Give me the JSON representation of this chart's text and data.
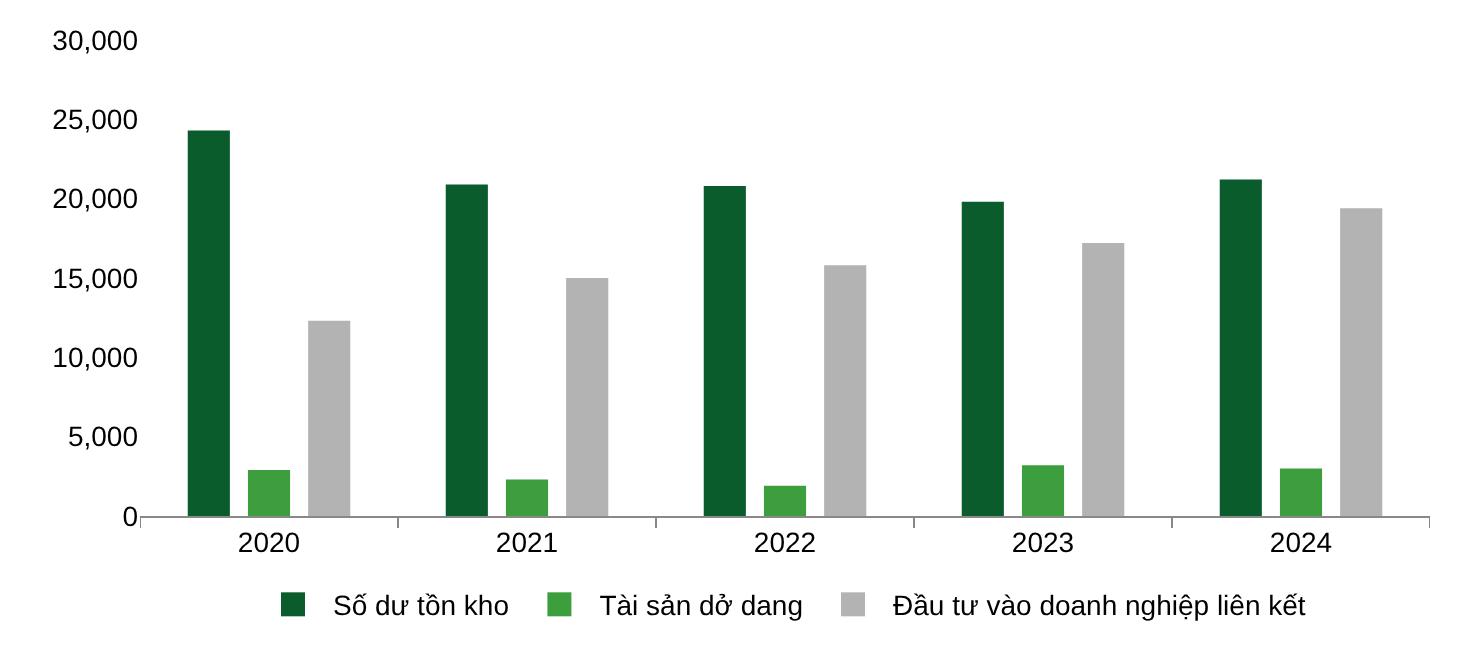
{
  "chart_data": {
    "type": "bar",
    "categories": [
      "2020",
      "2021",
      "2022",
      "2023",
      "2024"
    ],
    "series": [
      {
        "name": "Số dư tồn kho",
        "color": "#0a5c2c",
        "values": [
          24300,
          20900,
          20800,
          19800,
          21200
        ]
      },
      {
        "name": "Tài sản dở dang",
        "color": "#3c9e3c",
        "values": [
          2900,
          2300,
          1900,
          3200,
          3000
        ]
      },
      {
        "name": "Đầu tư vào doanh nghiệp liên kết",
        "color": "#b3b3b3",
        "values": [
          12300,
          15000,
          15800,
          17200,
          19400
        ]
      }
    ],
    "ylim": [
      0,
      30000
    ],
    "yticks": [
      {
        "value": 0,
        "label": "0"
      },
      {
        "value": 5000,
        "label": "5,000"
      },
      {
        "value": 10000,
        "label": "10,000"
      },
      {
        "value": 15000,
        "label": "15,000"
      },
      {
        "value": 20000,
        "label": "20,000"
      },
      {
        "value": 25000,
        "label": "25,000"
      },
      {
        "value": 30000,
        "label": "30,000"
      }
    ],
    "grid": false,
    "legend": "bottom"
  }
}
